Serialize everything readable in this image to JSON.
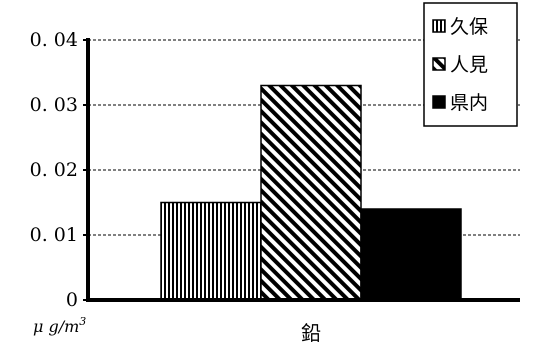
{
  "chart_data": {
    "type": "bar",
    "categories": [
      "鉛"
    ],
    "series": [
      {
        "name": "久保",
        "values": [
          0.015
        ],
        "pattern": "vertical"
      },
      {
        "name": "人見",
        "values": [
          0.033
        ],
        "pattern": "diagonal"
      },
      {
        "name": "県内",
        "values": [
          0.014
        ],
        "pattern": "solid"
      }
    ],
    "ylim": [
      0,
      0.04
    ],
    "yticks": [
      "0",
      "0.01",
      "0.02",
      "0.03",
      "0.04"
    ],
    "ylabel": "μg/m³",
    "ylabel_display": "μ g/m",
    "ylabel_sup": "3",
    "grid": true,
    "grid_style": "dashed",
    "legend_position": "top-right"
  },
  "colors": {
    "bar": "#000000",
    "background": "#ffffff"
  }
}
